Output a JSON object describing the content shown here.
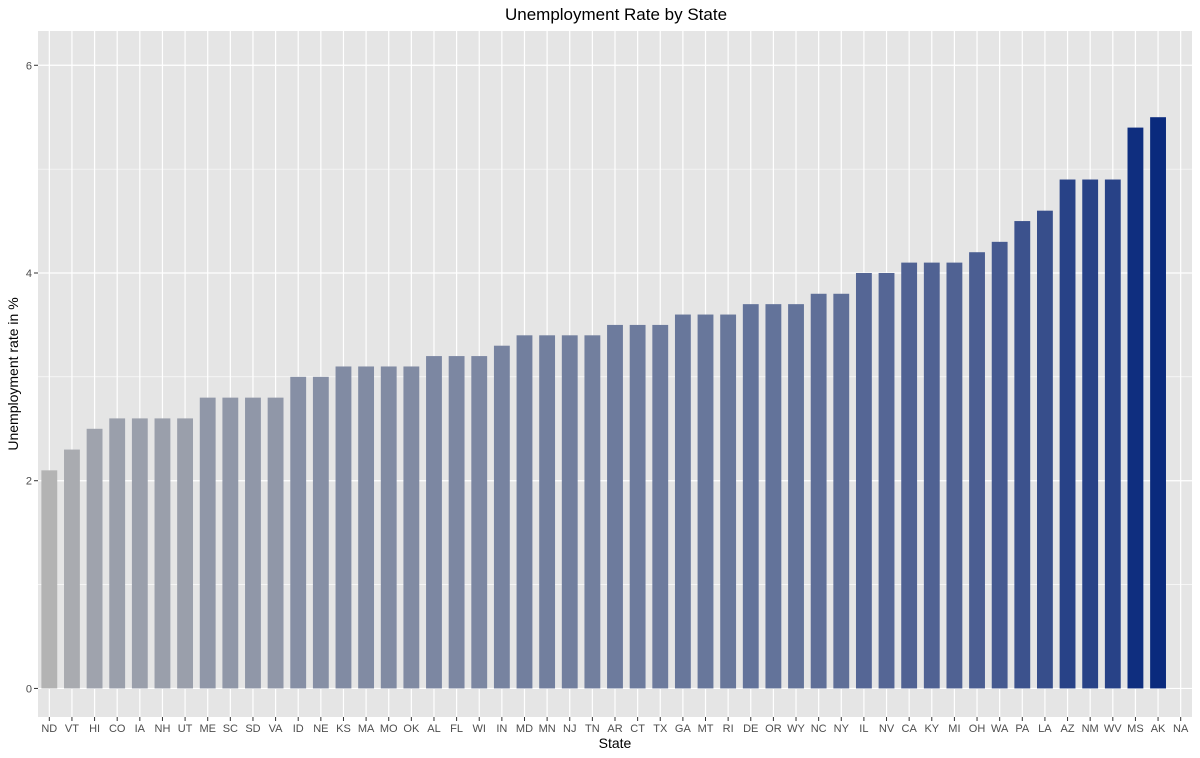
{
  "chart_data": {
    "type": "bar",
    "title": "Unemployment Rate by State",
    "xlabel": "State",
    "ylabel": "Unemployment rate in %",
    "ylim": [
      0,
      6
    ],
    "yticks": [
      0,
      2,
      4,
      6
    ],
    "grid": true,
    "legend": "none",
    "colors": {
      "low": "#b3b3b3",
      "high": "#0a2a7d",
      "panel": "#e5e5e5",
      "grid": "#ffffff"
    },
    "categories": [
      "ND",
      "VT",
      "HI",
      "CO",
      "IA",
      "NH",
      "UT",
      "ME",
      "SC",
      "SD",
      "VA",
      "ID",
      "NE",
      "KS",
      "MA",
      "MO",
      "OK",
      "AL",
      "FL",
      "WI",
      "IN",
      "MD",
      "MN",
      "NJ",
      "TN",
      "AR",
      "CT",
      "TX",
      "GA",
      "MT",
      "RI",
      "DE",
      "OR",
      "WY",
      "NC",
      "NY",
      "IL",
      "NV",
      "CA",
      "KY",
      "MI",
      "OH",
      "WA",
      "PA",
      "LA",
      "AZ",
      "NM",
      "WV",
      "MS",
      "AK",
      "NA"
    ],
    "values": [
      2.1,
      2.3,
      2.5,
      2.6,
      2.6,
      2.6,
      2.6,
      2.8,
      2.8,
      2.8,
      2.8,
      3.0,
      3.0,
      3.1,
      3.1,
      3.1,
      3.1,
      3.2,
      3.2,
      3.2,
      3.3,
      3.4,
      3.4,
      3.4,
      3.4,
      3.5,
      3.5,
      3.5,
      3.6,
      3.6,
      3.6,
      3.7,
      3.7,
      3.7,
      3.8,
      3.8,
      4.0,
      4.0,
      4.1,
      4.1,
      4.1,
      4.2,
      4.3,
      4.5,
      4.6,
      4.9,
      4.9,
      4.9,
      5.4,
      5.5,
      null
    ]
  }
}
